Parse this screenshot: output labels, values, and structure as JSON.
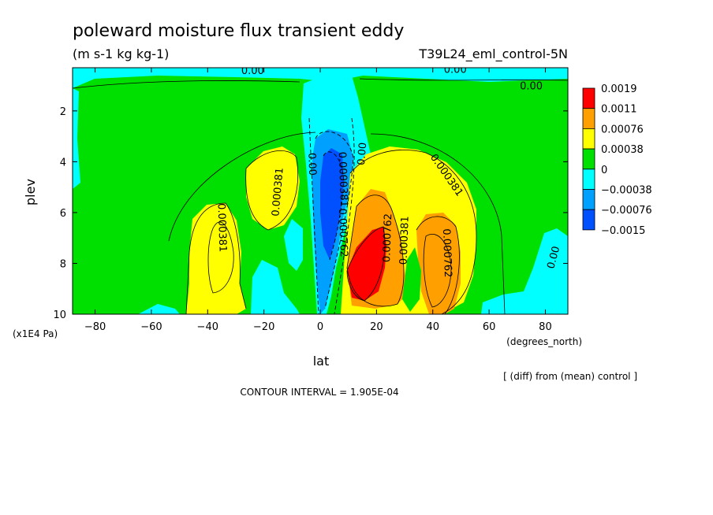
{
  "chart_data": {
    "type": "heatmap",
    "title": "poleward moisture flux transient eddy",
    "units": "(m s-1 kg kg-1)",
    "run_label": "T39L24_eml_control-5N",
    "xlabel": "lat",
    "x_units": "(degrees_north)",
    "ylabel": "plev",
    "y_units": "(x1E4 Pa)",
    "xlim": [
      -88,
      88
    ],
    "ylim": [
      10,
      0.3
    ],
    "x_ticks": [
      -80,
      -60,
      -40,
      -20,
      0,
      20,
      40,
      60,
      80
    ],
    "x_tick_labels": [
      "-80",
      "-60",
      "-40",
      "-20",
      "0",
      "20",
      "40",
      "60",
      "80"
    ],
    "y_ticks": [
      2,
      4,
      6,
      8,
      10
    ],
    "y_tick_labels": [
      "2",
      "4",
      "6",
      "8",
      "10"
    ],
    "contour_interval": "CONTOUR INTERVAL = 1.905E-04",
    "footnote": "[ (diff) from (mean) control ]",
    "legend": {
      "placement": "right",
      "labels": [
        "0.0019",
        "0.0011",
        "0.00076",
        "0.00038",
        "0",
        "-0.00038",
        "-0.00076",
        "-0.0015"
      ],
      "colors": [
        "#ff0000",
        "#ffa000",
        "#ffff00",
        "#00e000",
        "#00ffff",
        "#00a0ff",
        "#0050ff"
      ]
    },
    "contour_labels": [
      {
        "text": "0.00",
        "x": -24,
        "y": 0.55,
        "rot": 0
      },
      {
        "text": "0.00",
        "x": 48,
        "y": 0.5,
        "rot": 0
      },
      {
        "text": "0.00",
        "x": 75,
        "y": 1.15,
        "rot": 0
      },
      {
        "text": "0.00",
        "x": 84,
        "y": 7.8,
        "rot": -75
      },
      {
        "text": "0.000381",
        "x": -14,
        "y": 5.2,
        "rot": -85
      },
      {
        "text": "0.000381",
        "x": -36,
        "y": 6.6,
        "rot": 88
      },
      {
        "text": "0.00",
        "x": -4,
        "y": 4.1,
        "rot": 88
      },
      {
        "text": "0.00",
        "x": 16,
        "y": 3.7,
        "rot": -85
      },
      {
        "text": "0.0000381",
        "x": 7,
        "y": 4.7,
        "rot": 88
      },
      {
        "text": "0.000762",
        "x": 7,
        "y": 6.8,
        "rot": 88
      },
      {
        "text": "0.000381",
        "x": 44,
        "y": 4.6,
        "rot": 55
      },
      {
        "text": "0.000762",
        "x": 25,
        "y": 7.0,
        "rot": -88
      },
      {
        "text": "0.000381",
        "x": 31,
        "y": 7.1,
        "rot": -88
      },
      {
        "text": "0.000762",
        "x": 44,
        "y": 7.6,
        "rot": 88
      }
    ],
    "grid": false
  }
}
